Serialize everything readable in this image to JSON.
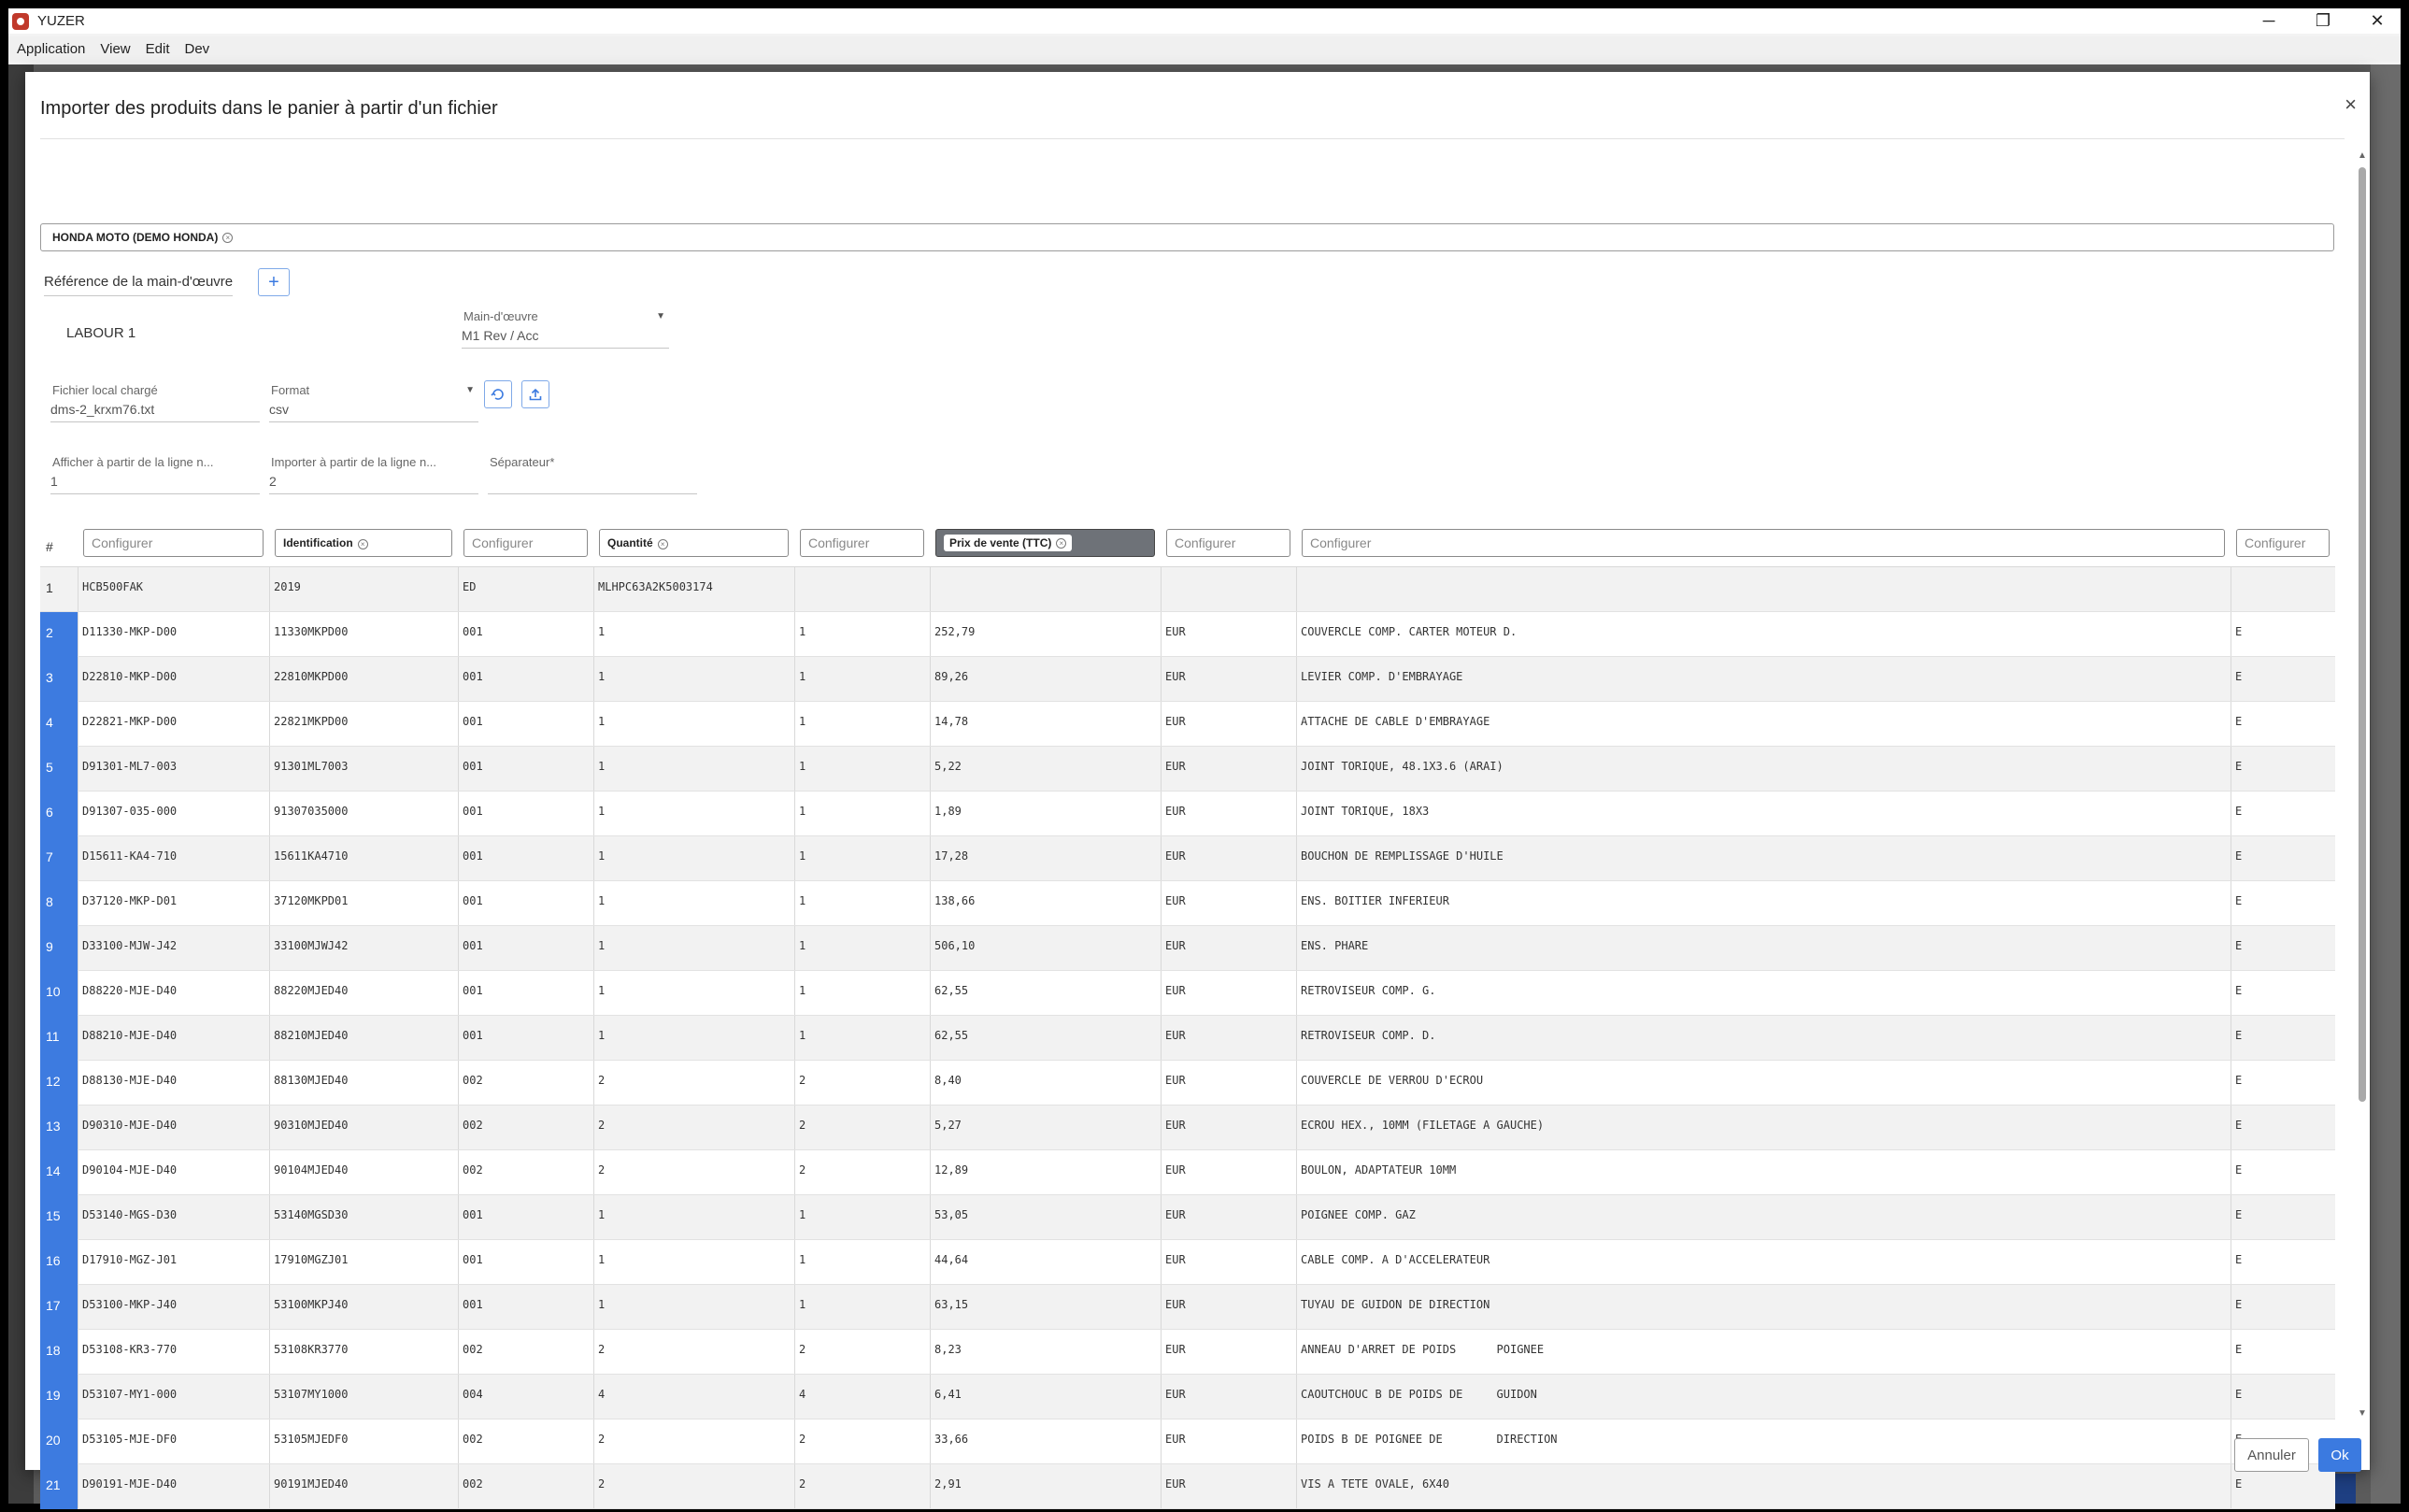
{
  "window": {
    "title": "YUZER",
    "minimize_glyph": "─",
    "restore_glyph": "❐",
    "close_glyph": "✕"
  },
  "menu": [
    "Application",
    "View",
    "Edit",
    "Dev"
  ],
  "dialog": {
    "title": "Importer des produits dans le panier à partir d'un fichier",
    "close_glyph": "×",
    "dealer_chip": "HONDA MOTO (DEMO HONDA)",
    "chip_remove_glyph": "×",
    "labour_ref_label": "Référence de la main-d'œuvre",
    "labour_add_glyph": "+",
    "labour_name": "LABOUR 1",
    "labour_select_label": "Main-d'œuvre",
    "labour_select_value": "M1 Rev / Acc",
    "file_label": "Fichier local chargé",
    "file_value": "dms-2_krxm76.txt",
    "format_label": "Format",
    "format_value": "csv",
    "display_from_label": "Afficher à partir de la ligne n...",
    "display_from_value": "1",
    "import_from_label": "Importer à partir de la ligne n...",
    "import_from_value": "2",
    "separator_label": "Séparateur*",
    "separator_value": "",
    "reload_icon": "reload-icon",
    "upload_icon": "upload-icon",
    "cancel_label": "Annuler",
    "ok_label": "Ok",
    "accent_color": "#3b7ae0"
  },
  "grid": {
    "hash_label": "#",
    "columns": [
      {
        "label": "Configurer",
        "mapped": false,
        "active": false
      },
      {
        "label": "Identification",
        "mapped": true,
        "active": false
      },
      {
        "label": "Configurer",
        "mapped": false,
        "active": false
      },
      {
        "label": "Quantité",
        "mapped": true,
        "active": false
      },
      {
        "label": "Configurer",
        "mapped": false,
        "active": false
      },
      {
        "label": "Prix de vente (TTC)",
        "mapped": true,
        "active": true
      },
      {
        "label": "Configurer",
        "mapped": false,
        "active": false
      },
      {
        "label": "Configurer",
        "mapped": false,
        "active": false
      },
      {
        "label": "Configurer",
        "mapped": false,
        "active": false
      }
    ],
    "rows": [
      [
        "1",
        "HCB500FAK",
        "2019",
        "ED",
        "MLHPC63A2K5003174",
        "",
        "",
        "",
        "",
        ""
      ],
      [
        "2",
        "D11330-MKP-D00",
        "11330MKPD00",
        "001",
        "1",
        "1",
        "252,79",
        "EUR",
        "COUVERCLE COMP. CARTER MOTEUR D.",
        "E"
      ],
      [
        "3",
        "D22810-MKP-D00",
        "22810MKPD00",
        "001",
        "1",
        "1",
        "89,26",
        "EUR",
        "LEVIER COMP. D'EMBRAYAGE",
        "E"
      ],
      [
        "4",
        "D22821-MKP-D00",
        "22821MKPD00",
        "001",
        "1",
        "1",
        "14,78",
        "EUR",
        "ATTACHE DE CABLE D'EMBRAYAGE",
        "E"
      ],
      [
        "5",
        "D91301-ML7-003",
        "91301ML7003",
        "001",
        "1",
        "1",
        "5,22",
        "EUR",
        "JOINT TORIQUE, 48.1X3.6 (ARAI)",
        "E"
      ],
      [
        "6",
        "D91307-035-000",
        "91307035000",
        "001",
        "1",
        "1",
        "1,89",
        "EUR",
        "JOINT TORIQUE, 18X3",
        "E"
      ],
      [
        "7",
        "D15611-KA4-710",
        "15611KA4710",
        "001",
        "1",
        "1",
        "17,28",
        "EUR",
        "BOUCHON DE REMPLISSAGE D'HUILE",
        "E"
      ],
      [
        "8",
        "D37120-MKP-D01",
        "37120MKPD01",
        "001",
        "1",
        "1",
        "138,66",
        "EUR",
        "ENS. BOITIER INFERIEUR",
        "E"
      ],
      [
        "9",
        "D33100-MJW-J42",
        "33100MJWJ42",
        "001",
        "1",
        "1",
        "506,10",
        "EUR",
        "ENS. PHARE",
        "E"
      ],
      [
        "10",
        "D88220-MJE-D40",
        "88220MJED40",
        "001",
        "1",
        "1",
        "62,55",
        "EUR",
        "RETROVISEUR COMP. G.",
        "E"
      ],
      [
        "11",
        "D88210-MJE-D40",
        "88210MJED40",
        "001",
        "1",
        "1",
        "62,55",
        "EUR",
        "RETROVISEUR COMP. D.",
        "E"
      ],
      [
        "12",
        "D88130-MJE-D40",
        "88130MJED40",
        "002",
        "2",
        "2",
        "8,40",
        "EUR",
        "COUVERCLE DE VERROU D'ECROU",
        "E"
      ],
      [
        "13",
        "D90310-MJE-D40",
        "90310MJED40",
        "002",
        "2",
        "2",
        "5,27",
        "EUR",
        "ECROU HEX., 10MM (FILETAGE A GAUCHE)",
        "E"
      ],
      [
        "14",
        "D90104-MJE-D40",
        "90104MJED40",
        "002",
        "2",
        "2",
        "12,89",
        "EUR",
        "BOULON, ADAPTATEUR 10MM",
        "E"
      ],
      [
        "15",
        "D53140-MGS-D30",
        "53140MGSD30",
        "001",
        "1",
        "1",
        "53,05",
        "EUR",
        "POIGNEE COMP. GAZ",
        "E"
      ],
      [
        "16",
        "D17910-MGZ-J01",
        "17910MGZJ01",
        "001",
        "1",
        "1",
        "44,64",
        "EUR",
        "CABLE COMP. A D'ACCELERATEUR",
        "E"
      ],
      [
        "17",
        "D53100-MKP-J40",
        "53100MKPJ40",
        "001",
        "1",
        "1",
        "63,15",
        "EUR",
        "TUYAU DE GUIDON DE DIRECTION",
        "E"
      ],
      [
        "18",
        "D53108-KR3-770",
        "53108KR3770",
        "002",
        "2",
        "2",
        "8,23",
        "EUR",
        "ANNEAU D'ARRET DE POIDS      POIGNEE",
        "E"
      ],
      [
        "19",
        "D53107-MY1-000",
        "53107MY1000",
        "004",
        "4",
        "4",
        "6,41",
        "EUR",
        "CAOUTCHOUC B DE POIDS DE     GUIDON",
        "E"
      ],
      [
        "20",
        "D53105-MJE-DF0",
        "53105MJEDF0",
        "002",
        "2",
        "2",
        "33,66",
        "EUR",
        "POIDS B DE POIGNEE DE        DIRECTION",
        "E"
      ],
      [
        "21",
        "D90191-MJE-D40",
        "90191MJED40",
        "002",
        "2",
        "2",
        "2,91",
        "EUR",
        "VIS A TETE OVALE, 6X40",
        "E"
      ]
    ]
  }
}
